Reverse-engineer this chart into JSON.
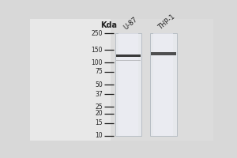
{
  "fig_bg": "#d8d8d8",
  "kda_label": "Kda",
  "lane_labels": [
    "U-87",
    "THP-1"
  ],
  "marker_weights": [
    250,
    150,
    100,
    75,
    50,
    37,
    25,
    20,
    15,
    10
  ],
  "lane_bg": "#ececec",
  "lane_bg_inner": "#f2f2f2",
  "band_color_dark": "#1a1a1a",
  "band_color_medium": "#666666",
  "lane1_band_kda": 124,
  "lane1_band2_kda": 108,
  "lane2_band_kda": 132,
  "marker_line_color": "#1a1a1a",
  "label_color": "#222222",
  "border_color": "#b0b8c0",
  "kda_label_fontsize": 7,
  "marker_fontsize": 5.5,
  "lane_label_fontsize": 6
}
